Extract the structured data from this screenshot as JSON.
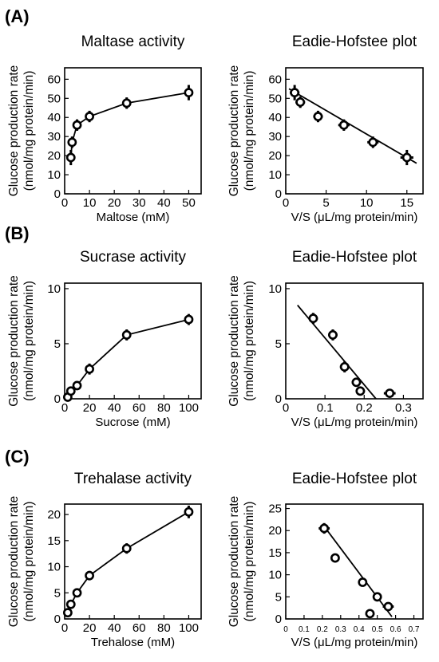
{
  "panel_labels": {
    "a": "(A)",
    "b": "(B)",
    "c": "(C)"
  },
  "chart_data": [
    {
      "type": "scatter",
      "panel": "(A)",
      "title": "Maltase activity",
      "xlabel": "Maltose (mM)",
      "ylabel": [
        "Glucose production rate",
        "(nmol/mg protein/min)"
      ],
      "xlim": [
        0,
        55
      ],
      "ylim": [
        0,
        66
      ],
      "xticks": [
        0,
        10,
        20,
        30,
        40,
        50
      ],
      "yticks": [
        0,
        10,
        20,
        30,
        40,
        50,
        60
      ],
      "connected": true,
      "fit_line": false,
      "points": [
        {
          "x": 2.5,
          "y": 19,
          "xerr": 0,
          "yerr": 4
        },
        {
          "x": 3.0,
          "y": 27,
          "xerr": 0,
          "yerr": 3
        },
        {
          "x": 5.0,
          "y": 36,
          "xerr": 0,
          "yerr": 3
        },
        {
          "x": 10,
          "y": 40.5,
          "xerr": 0,
          "yerr": 3
        },
        {
          "x": 25,
          "y": 47.5,
          "xerr": 0,
          "yerr": 3
        },
        {
          "x": 50,
          "y": 53,
          "xerr": 0,
          "yerr": 4
        }
      ]
    },
    {
      "type": "scatter",
      "panel": "(A)",
      "title": "Eadie-Hofstee plot",
      "xlabel": "V/S (μL/mg protein/min)",
      "ylabel": [
        "Glucose production rate",
        "(nmol/mg protein/min)"
      ],
      "xlim": [
        0,
        17
      ],
      "ylim": [
        0,
        66
      ],
      "xticks": [
        0,
        5,
        10,
        15
      ],
      "yticks": [
        0,
        10,
        20,
        30,
        40,
        50,
        60
      ],
      "connected": false,
      "fit_line": {
        "x1": 0.4,
        "y1": 55,
        "x2": 16.2,
        "y2": 16
      },
      "points": [
        {
          "x": 1.1,
          "y": 53,
          "xerr": 0.6,
          "yerr": 4
        },
        {
          "x": 1.8,
          "y": 48,
          "xerr": 0.6,
          "yerr": 3
        },
        {
          "x": 4.0,
          "y": 40.5,
          "xerr": 0.6,
          "yerr": 3
        },
        {
          "x": 7.2,
          "y": 36,
          "xerr": 0.7,
          "yerr": 3
        },
        {
          "x": 10.8,
          "y": 27,
          "xerr": 0.7,
          "yerr": 3
        },
        {
          "x": 15.0,
          "y": 19,
          "xerr": 0.8,
          "yerr": 4
        }
      ]
    },
    {
      "type": "scatter",
      "panel": "(B)",
      "title": "Sucrase activity",
      "xlabel": "Sucrose (mM)",
      "ylabel": [
        "Glucose production rate",
        "(nmol/mg protein/min)"
      ],
      "xlim": [
        0,
        110
      ],
      "ylim": [
        0,
        10.5
      ],
      "xticks": [
        0,
        20,
        40,
        60,
        80,
        100
      ],
      "yticks": [
        0,
        5,
        10
      ],
      "connected": true,
      "fit_line": false,
      "points": [
        {
          "x": 2.5,
          "y": 0.15,
          "xerr": 0,
          "yerr": 0.3
        },
        {
          "x": 5,
          "y": 0.7,
          "xerr": 0,
          "yerr": 0.3
        },
        {
          "x": 10,
          "y": 1.2,
          "xerr": 0,
          "yerr": 0.4
        },
        {
          "x": 20,
          "y": 2.7,
          "xerr": 0,
          "yerr": 0.5
        },
        {
          "x": 50,
          "y": 5.8,
          "xerr": 0,
          "yerr": 0.5
        },
        {
          "x": 100,
          "y": 7.2,
          "xerr": 0,
          "yerr": 0.5
        }
      ]
    },
    {
      "type": "scatter",
      "panel": "(B)",
      "title": "Eadie-Hofstee plot",
      "xlabel": "V/S (μL/mg protein/min)",
      "ylabel": [
        "Glucose production rate",
        "(nmol/mg protein/min)"
      ],
      "xlim": [
        0,
        0.35
      ],
      "ylim": [
        0,
        10.5
      ],
      "xticks": [
        0,
        0.1,
        0.2,
        0.3
      ],
      "yticks": [
        0,
        5,
        10
      ],
      "connected": false,
      "fit_line": {
        "x1": 0.03,
        "y1": 8.5,
        "x2": 0.23,
        "y2": 0
      },
      "points": [
        {
          "x": 0.07,
          "y": 7.3,
          "xerr": 0.012,
          "yerr": 0.5
        },
        {
          "x": 0.12,
          "y": 5.8,
          "xerr": 0.012,
          "yerr": 0.5
        },
        {
          "x": 0.15,
          "y": 2.9,
          "xerr": 0.012,
          "yerr": 0.5
        },
        {
          "x": 0.18,
          "y": 1.5,
          "xerr": 0.012,
          "yerr": 0.4
        },
        {
          "x": 0.19,
          "y": 0.7,
          "xerr": 0.012,
          "yerr": 0.3
        },
        {
          "x": 0.265,
          "y": 0.5,
          "xerr": 0.015,
          "yerr": 0.3
        }
      ]
    },
    {
      "type": "scatter",
      "panel": "(C)",
      "title": "Trehalase activity",
      "xlabel": "Trehalose (mM)",
      "ylabel": [
        "Glucose production rate",
        "(nmol/mg protein/min)"
      ],
      "xlim": [
        0,
        110
      ],
      "ylim": [
        0,
        22
      ],
      "xticks": [
        0,
        20,
        40,
        60,
        80,
        100
      ],
      "yticks": [
        0,
        5,
        10,
        15,
        20
      ],
      "connected": true,
      "fit_line": false,
      "points": [
        {
          "x": 2.5,
          "y": 1.2,
          "xerr": 0,
          "yerr": 0.5
        },
        {
          "x": 5,
          "y": 2.8,
          "xerr": 0,
          "yerr": 0.7
        },
        {
          "x": 10,
          "y": 5.0,
          "xerr": 0,
          "yerr": 0.8
        },
        {
          "x": 20,
          "y": 8.3,
          "xerr": 0,
          "yerr": 0.9
        },
        {
          "x": 50,
          "y": 13.5,
          "xerr": 0,
          "yerr": 1.0
        },
        {
          "x": 100,
          "y": 20.5,
          "xerr": 0,
          "yerr": 1.2
        }
      ]
    },
    {
      "type": "scatter",
      "panel": "(C)",
      "title": "Eadie-Hofstee plot",
      "xlabel": "V/S (μL/mg protein/min)",
      "ylabel": [
        "Glucose production rate",
        "(nmol/mg protein/min)"
      ],
      "xlim": [
        0,
        0.75
      ],
      "ylim": [
        0,
        26
      ],
      "xticks": [
        0,
        0.1,
        0.2,
        0.3,
        0.4,
        0.5,
        0.6,
        0.7
      ],
      "yticks": [
        0,
        5,
        10,
        15,
        20,
        25
      ],
      "connected": false,
      "fit_line": {
        "x1": 0.2,
        "y1": 21.5,
        "x2": 0.58,
        "y2": 0.5
      },
      "points": [
        {
          "x": 0.21,
          "y": 20.5,
          "xerr": 0.03,
          "yerr": 1.2
        },
        {
          "x": 0.27,
          "y": 13.8,
          "xerr": 0.02,
          "yerr": 1.0
        },
        {
          "x": 0.42,
          "y": 8.3,
          "xerr": 0.02,
          "yerr": 0.9
        },
        {
          "x": 0.5,
          "y": 5.0,
          "xerr": 0.025,
          "yerr": 0.8
        },
        {
          "x": 0.56,
          "y": 2.8,
          "xerr": 0.03,
          "yerr": 0.8
        },
        {
          "x": 0.46,
          "y": 1.2,
          "xerr": 0.025,
          "yerr": 0.5
        }
      ]
    }
  ]
}
